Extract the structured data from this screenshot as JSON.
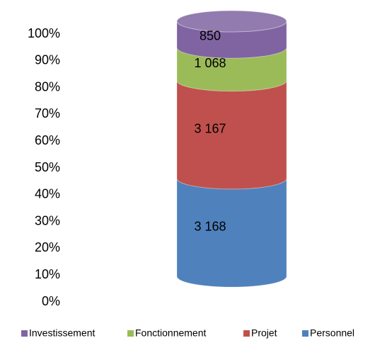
{
  "chart_data": {
    "type": "stacked-cylinder-100",
    "series": [
      {
        "name": "Personnel",
        "color": "#4f81bd",
        "values": [
          3168
        ],
        "value_labels": [
          "3 168"
        ]
      },
      {
        "name": "Projet",
        "color": "#c0504d",
        "values": [
          3167
        ],
        "value_labels": [
          "3 167"
        ]
      },
      {
        "name": "Fonctionnement",
        "color": "#9bbb59",
        "values": [
          1068
        ],
        "value_labels": [
          "1 068"
        ]
      },
      {
        "name": "Investissement",
        "color": "#8064a2",
        "values": [
          850
        ],
        "value_labels": [
          "850"
        ]
      }
    ],
    "ylim": [
      0,
      100
    ],
    "yticks": [
      {
        "value": 0,
        "label": "0%"
      },
      {
        "value": 10,
        "label": "10%"
      },
      {
        "value": 20,
        "label": "20%"
      },
      {
        "value": 30,
        "label": "30%"
      },
      {
        "value": 40,
        "label": "40%"
      },
      {
        "value": 50,
        "label": "50%"
      },
      {
        "value": 60,
        "label": "60%"
      },
      {
        "value": 70,
        "label": "70%"
      },
      {
        "value": 80,
        "label": "80%"
      },
      {
        "value": 90,
        "label": "90%"
      },
      {
        "value": 100,
        "label": "100%"
      }
    ],
    "legend": "bottom"
  }
}
